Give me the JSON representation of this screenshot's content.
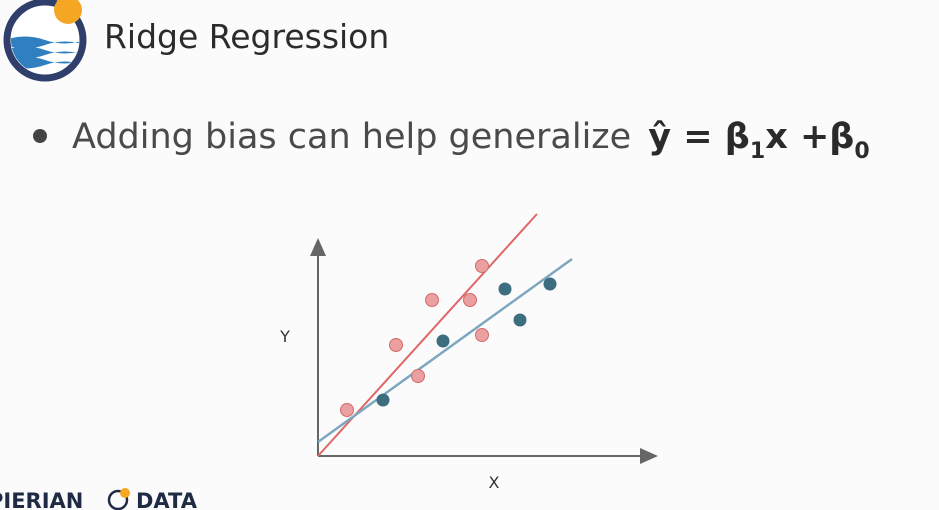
{
  "header": {
    "title": "Ridge Regression"
  },
  "bullet": {
    "text": "Adding bias can help generalize",
    "formula": [
      "ŷ = β",
      "1",
      "x +β",
      "0"
    ]
  },
  "diagram": {
    "y_label": "Y",
    "x_label": "X"
  },
  "footer": {
    "brand_left": "PIERIAN",
    "brand_right": "DATA"
  }
}
